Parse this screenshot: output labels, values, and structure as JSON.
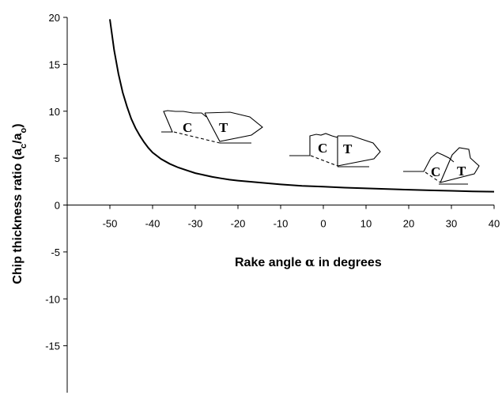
{
  "chart_data": {
    "type": "line",
    "xlabel_main": "Rake angle ",
    "xlabel_symbol": "α",
    "xlabel_tail": " in degrees",
    "ylabel_main": "Chip thickness ratio (a",
    "ylabel_sub1": "c",
    "ylabel_mid": "/a",
    "ylabel_sub2": "o",
    "ylabel_end": ")",
    "xlim": [
      -60,
      40
    ],
    "ylim": [
      -20,
      20
    ],
    "x_ticks": [
      -50,
      -40,
      -30,
      -20,
      -10,
      0,
      10,
      20,
      30,
      40
    ],
    "y_ticks": [
      20,
      15,
      10,
      5,
      0,
      -5,
      -10,
      -15
    ],
    "series": [
      {
        "x": [
          -50,
          -49,
          -48,
          -47,
          -46,
          -45,
          -44,
          -43,
          -42,
          -41,
          -40,
          -38,
          -36,
          -34,
          -32,
          -30,
          -28,
          -26,
          -24,
          -22,
          -20,
          -15,
          -10,
          -5,
          0,
          5,
          10,
          15,
          20,
          25,
          30,
          35,
          40
        ],
        "y": [
          19.8,
          16.5,
          14.0,
          12.0,
          10.5,
          9.2,
          8.2,
          7.4,
          6.7,
          6.1,
          5.6,
          4.9,
          4.4,
          4.0,
          3.7,
          3.4,
          3.2,
          3.0,
          2.85,
          2.7,
          2.6,
          2.4,
          2.2,
          2.05,
          1.95,
          1.85,
          1.78,
          1.7,
          1.63,
          1.57,
          1.52,
          1.46,
          1.42
        ]
      }
    ],
    "annotations": [
      {
        "tool": "T",
        "chip": "C"
      },
      {
        "tool": "T",
        "chip": "C"
      },
      {
        "tool": "T",
        "chip": "C"
      }
    ]
  }
}
